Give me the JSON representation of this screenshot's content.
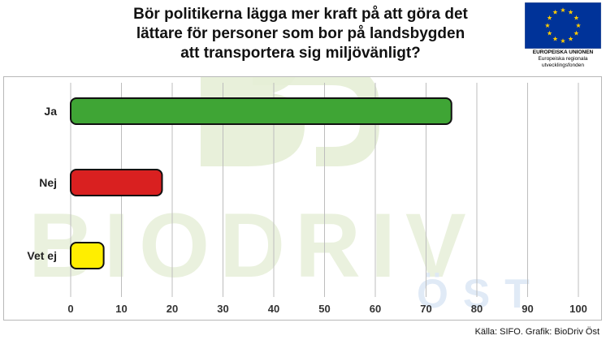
{
  "chart_data": {
    "type": "bar",
    "orientation": "horizontal",
    "title_lines": [
      "Bör politikerna lägga mer kraft på att göra det",
      "lättare för personer som bor på landsbygden",
      "att transportera sig miljövänligt?"
    ],
    "categories": [
      "Ja",
      "Nej",
      "Vet ej"
    ],
    "values": [
      75,
      18,
      6.5
    ],
    "colors": [
      "#3fa535",
      "#d92020",
      "#ffee00"
    ],
    "xlim": [
      0,
      100
    ],
    "xticks": [
      "0",
      "10",
      "20",
      "30",
      "40",
      "50",
      "60",
      "70",
      "80",
      "90",
      "100"
    ],
    "grid": true,
    "legend": "none"
  },
  "eu_logo": {
    "name": "EUROPEISKA UNIONEN",
    "fund_lines": [
      "Europeiska regionala",
      "utvecklingsfonden"
    ],
    "flag_color": "#003399",
    "star_color": "#ffcc00"
  },
  "watermark": {
    "word": "BIODRIV",
    "sub": "ÖST",
    "colors": [
      "#e6eed6",
      "#dde8f6"
    ]
  },
  "source": "Källa: SIFO. Grafik: BioDriv Öst"
}
